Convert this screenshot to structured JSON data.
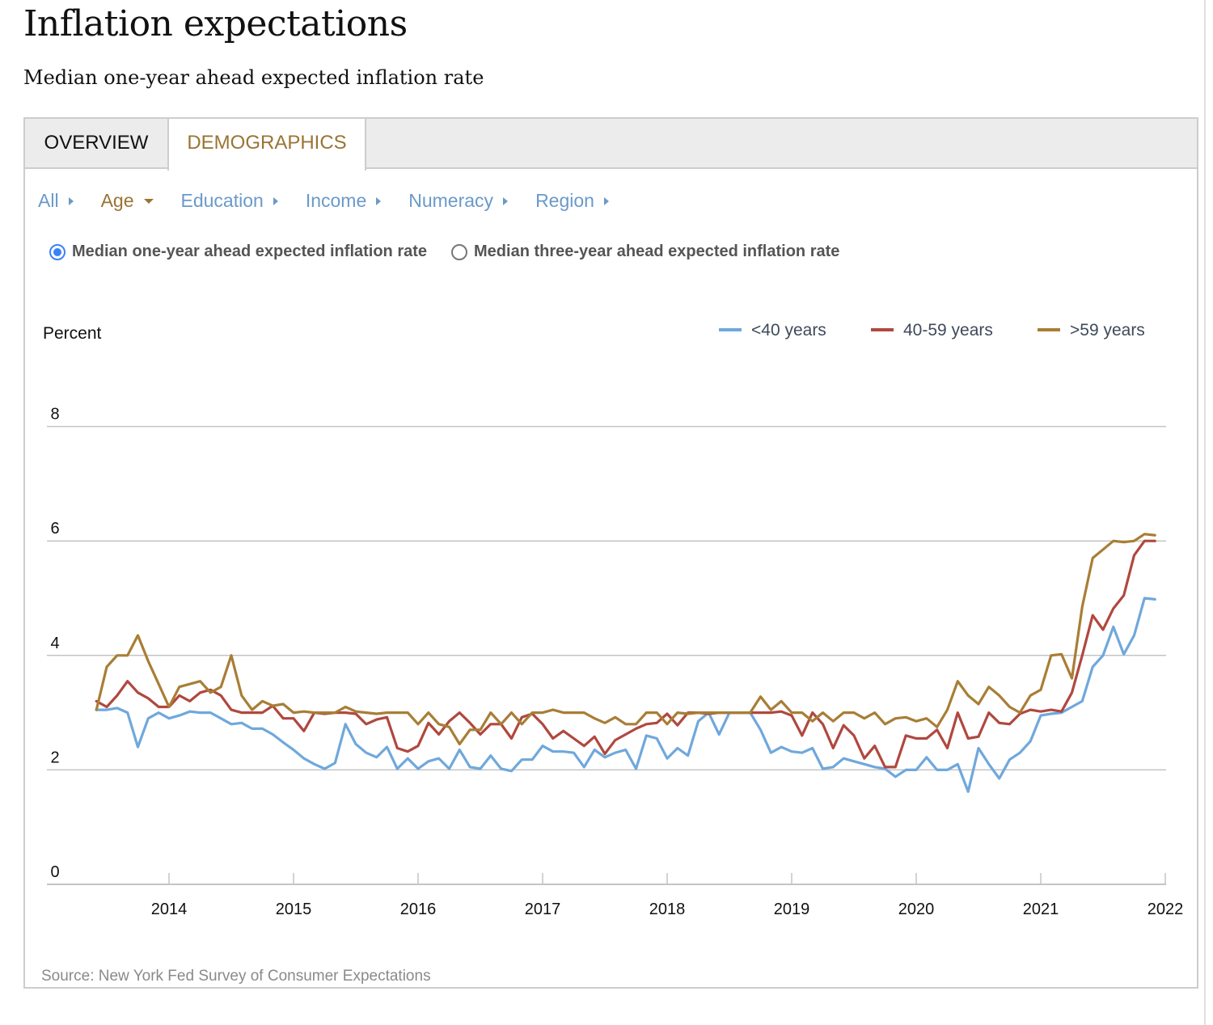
{
  "page": {
    "title": "Inflation expectations",
    "subtitle": "Median one-year ahead expected inflation rate"
  },
  "tabs": [
    {
      "label": "OVERVIEW",
      "active": false
    },
    {
      "label": "DEMOGRAPHICS",
      "active": true
    }
  ],
  "filters": [
    {
      "label": "All",
      "icon": "caret-right-icon",
      "active": false
    },
    {
      "label": "Age",
      "icon": "caret-down-icon",
      "active": true
    },
    {
      "label": "Education",
      "icon": "caret-right-icon",
      "active": false
    },
    {
      "label": "Income",
      "icon": "caret-right-icon",
      "active": false
    },
    {
      "label": "Numeracy",
      "icon": "caret-right-icon",
      "active": false
    },
    {
      "label": "Region",
      "icon": "caret-right-icon",
      "active": false
    }
  ],
  "radios": [
    {
      "label": "Median one-year ahead expected inflation rate",
      "checked": true
    },
    {
      "label": "Median three-year ahead expected inflation rate",
      "checked": false
    }
  ],
  "colors": {
    "under40": "#6fa8dc",
    "age40to59": "#b0483f",
    "over59": "#a87e36",
    "accent_active": "#9a7434",
    "link": "#6a9ac9",
    "radio": "#3b82f6"
  },
  "source": "Source: New York Fed Survey of Consumer Expectations",
  "chart_data": {
    "type": "line",
    "title": "",
    "xlabel": "",
    "ylabel": "Percent",
    "ylim": [
      0,
      8
    ],
    "yticks": [
      0,
      2,
      4,
      6,
      8
    ],
    "xticks": [
      "2014",
      "2015",
      "2016",
      "2017",
      "2018",
      "2019",
      "2020",
      "2021",
      "2022"
    ],
    "grid": true,
    "legend": "top-right",
    "x_start": "2013-06",
    "x_end": "2021-12",
    "frequency": "monthly",
    "series": [
      {
        "name": "<40 years",
        "color": "#6fa8dc",
        "values": [
          3.05,
          3.05,
          3.08,
          3.0,
          2.4,
          2.9,
          3.0,
          2.9,
          2.95,
          3.02,
          3.0,
          3.0,
          2.9,
          2.8,
          2.82,
          2.72,
          2.72,
          2.62,
          2.48,
          2.35,
          2.2,
          2.1,
          2.02,
          2.12,
          2.8,
          2.45,
          2.3,
          2.22,
          2.4,
          2.02,
          2.2,
          2.02,
          2.15,
          2.2,
          2.02,
          2.35,
          2.05,
          2.02,
          2.25,
          2.02,
          1.98,
          2.18,
          2.18,
          2.42,
          2.32,
          2.32,
          2.3,
          2.05,
          2.35,
          2.22,
          2.3,
          2.35,
          2.02,
          2.6,
          2.55,
          2.2,
          2.38,
          2.25,
          2.85,
          3.0,
          2.62,
          3.0,
          3.0,
          3.0,
          2.7,
          2.3,
          2.4,
          2.32,
          2.3,
          2.38,
          2.02,
          2.05,
          2.2,
          2.15,
          2.1,
          2.05,
          2.02,
          1.88,
          2.0,
          2.0,
          2.22,
          2.0,
          2.0,
          2.1,
          1.62,
          2.38,
          2.1,
          1.85,
          2.18,
          2.3,
          2.5,
          2.95,
          2.98,
          3.0,
          3.1,
          3.2,
          3.8,
          4.0,
          4.5,
          4.02,
          4.35,
          5.0,
          4.98
        ]
      },
      {
        "name": "40-59 years",
        "color": "#b0483f",
        "values": [
          3.2,
          3.1,
          3.3,
          3.55,
          3.35,
          3.25,
          3.1,
          3.1,
          3.3,
          3.2,
          3.35,
          3.4,
          3.3,
          3.05,
          3.0,
          3.0,
          3.0,
          3.12,
          2.9,
          2.9,
          2.68,
          3.0,
          2.98,
          3.0,
          3.0,
          2.98,
          2.8,
          2.88,
          2.92,
          2.38,
          2.32,
          2.42,
          2.82,
          2.62,
          2.85,
          3.0,
          2.82,
          2.62,
          2.8,
          2.8,
          2.55,
          2.92,
          2.98,
          2.8,
          2.55,
          2.68,
          2.55,
          2.42,
          2.58,
          2.28,
          2.52,
          2.62,
          2.72,
          2.8,
          2.82,
          2.98,
          2.78,
          3.0,
          3.0,
          2.98,
          3.0,
          3.0,
          3.0,
          3.0,
          3.0,
          3.0,
          3.02,
          2.95,
          2.6,
          3.0,
          2.8,
          2.38,
          2.78,
          2.6,
          2.2,
          2.42,
          2.05,
          2.05,
          2.6,
          2.55,
          2.55,
          2.7,
          2.38,
          3.0,
          2.55,
          2.58,
          3.0,
          2.82,
          2.8,
          2.98,
          3.05,
          3.02,
          3.05,
          3.02,
          3.35,
          4.0,
          4.7,
          4.45,
          4.82,
          5.05,
          5.75,
          6.0,
          6.0
        ]
      },
      {
        "name": ">59 years",
        "color": "#a87e36",
        "values": [
          3.05,
          3.8,
          4.0,
          4.0,
          4.35,
          3.9,
          3.5,
          3.1,
          3.45,
          3.5,
          3.55,
          3.35,
          3.45,
          4.0,
          3.3,
          3.05,
          3.2,
          3.12,
          3.15,
          3.0,
          3.02,
          3.0,
          3.0,
          3.0,
          3.1,
          3.02,
          3.0,
          2.98,
          3.0,
          3.0,
          3.0,
          2.8,
          3.0,
          2.8,
          2.75,
          2.45,
          2.7,
          2.7,
          3.0,
          2.8,
          3.0,
          2.8,
          3.0,
          3.0,
          3.05,
          3.0,
          3.0,
          3.0,
          2.9,
          2.82,
          2.92,
          2.8,
          2.8,
          3.0,
          3.0,
          2.8,
          3.0,
          2.98,
          3.0,
          3.0,
          3.0,
          3.0,
          3.0,
          3.0,
          3.28,
          3.05,
          3.2,
          3.0,
          3.0,
          2.85,
          3.0,
          2.85,
          3.0,
          3.0,
          2.9,
          3.0,
          2.8,
          2.9,
          2.92,
          2.85,
          2.9,
          2.75,
          3.05,
          3.55,
          3.3,
          3.15,
          3.45,
          3.3,
          3.1,
          3.0,
          3.3,
          3.4,
          4.0,
          4.02,
          3.6,
          4.85,
          5.7,
          5.85,
          6.0,
          5.98,
          6.0,
          6.12,
          6.1
        ]
      }
    ]
  }
}
